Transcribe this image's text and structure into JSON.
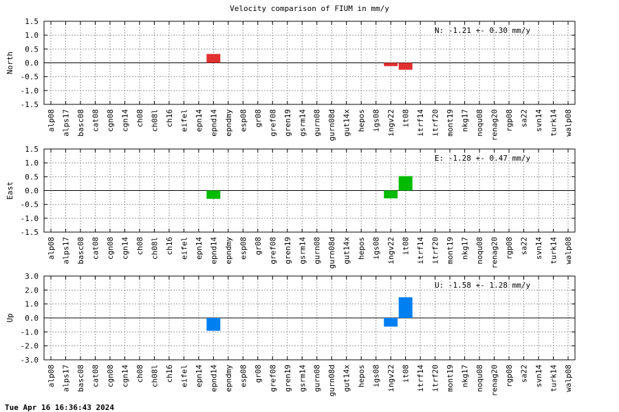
{
  "title": "Velocity comparison of FIUM in mm/y",
  "footer": "Tue Apr 16 16:36:43 2024",
  "chart_data": [
    {
      "type": "bar",
      "ylabel": "North",
      "ylim": [
        -1.5,
        1.5
      ],
      "yticks": [
        "1.5",
        "1.0",
        "0.5",
        "0.0",
        "-0.5",
        "-1.0",
        "-1.5"
      ],
      "annotation": "N:  -1.21 +-  0.30 mm/y",
      "color": "#e03030",
      "grid": true,
      "categories": [
        "alp08",
        "alps17",
        "basc08",
        "cat08",
        "cgn08",
        "cgn14",
        "ch08",
        "ch08l",
        "ch16",
        "eifel",
        "epn14",
        "epnd14",
        "epndmy",
        "esp08",
        "gr08",
        "gref08",
        "gren19",
        "gsrm14",
        "gurn08",
        "gurn08d",
        "gut14x",
        "hepos",
        "igs08",
        "ingv22",
        "it08",
        "itrf14",
        "itrf20",
        "mont19",
        "nkg17",
        "noqu08",
        "renag20",
        "rgp08",
        "sa22",
        "svn14",
        "turk14",
        "walp08"
      ],
      "values": [
        null,
        null,
        null,
        null,
        null,
        null,
        null,
        null,
        null,
        null,
        null,
        0.32,
        null,
        null,
        null,
        null,
        null,
        null,
        null,
        null,
        null,
        null,
        null,
        -0.12,
        -0.25,
        null,
        null,
        null,
        null,
        null,
        null,
        null,
        null,
        null,
        null,
        null
      ]
    },
    {
      "type": "bar",
      "ylabel": "East",
      "ylim": [
        -1.5,
        1.5
      ],
      "yticks": [
        "1.5",
        "1.0",
        "0.5",
        "0.0",
        "-0.5",
        "-1.0",
        "-1.5"
      ],
      "annotation": "E:  -1.28 +-  0.47 mm/y",
      "color": "#00bb00",
      "grid": true,
      "categories": [
        "alp08",
        "alps17",
        "basc08",
        "cat08",
        "cgn08",
        "cgn14",
        "ch08",
        "ch08l",
        "ch16",
        "eifel",
        "epn14",
        "epnd14",
        "epndmy",
        "esp08",
        "gr08",
        "gref08",
        "gren19",
        "gsrm14",
        "gurn08",
        "gurn08d",
        "gut14x",
        "hepos",
        "igs08",
        "ingv22",
        "it08",
        "itrf14",
        "itrf20",
        "mont19",
        "nkg17",
        "noqu08",
        "renag20",
        "rgp08",
        "sa22",
        "svn14",
        "turk14",
        "walp08"
      ],
      "values": [
        null,
        null,
        null,
        null,
        null,
        null,
        null,
        null,
        null,
        null,
        null,
        -0.3,
        null,
        null,
        null,
        null,
        null,
        null,
        null,
        null,
        null,
        null,
        null,
        -0.28,
        0.52,
        null,
        null,
        null,
        null,
        null,
        null,
        null,
        null,
        null,
        null,
        null
      ]
    },
    {
      "type": "bar",
      "ylabel": "Up",
      "ylim": [
        -3.0,
        3.0
      ],
      "yticks": [
        "3.0",
        "2.0",
        "1.0",
        "0.0",
        "-1.0",
        "-2.0",
        "-3.0"
      ],
      "annotation": "U:  -1.58 +-  1.28 mm/y",
      "color": "#0080f0",
      "grid": true,
      "categories": [
        "alp08",
        "alps17",
        "basc08",
        "cat08",
        "cgn08",
        "cgn14",
        "ch08",
        "ch08l",
        "ch16",
        "eifel",
        "epn14",
        "epnd14",
        "epndmy",
        "esp08",
        "gr08",
        "gref08",
        "gren19",
        "gsrm14",
        "gurn08",
        "gurn08d",
        "gut14x",
        "hepos",
        "igs08",
        "ingv22",
        "it08",
        "itrf14",
        "itrf20",
        "mont19",
        "nkg17",
        "noqu08",
        "renag20",
        "rgp08",
        "sa22",
        "svn14",
        "turk14",
        "walp08"
      ],
      "values": [
        null,
        null,
        null,
        null,
        null,
        null,
        null,
        null,
        null,
        null,
        null,
        -0.92,
        null,
        null,
        null,
        null,
        null,
        null,
        null,
        null,
        null,
        null,
        null,
        -0.62,
        1.48,
        null,
        null,
        null,
        null,
        null,
        null,
        null,
        null,
        null,
        null,
        null
      ]
    }
  ]
}
